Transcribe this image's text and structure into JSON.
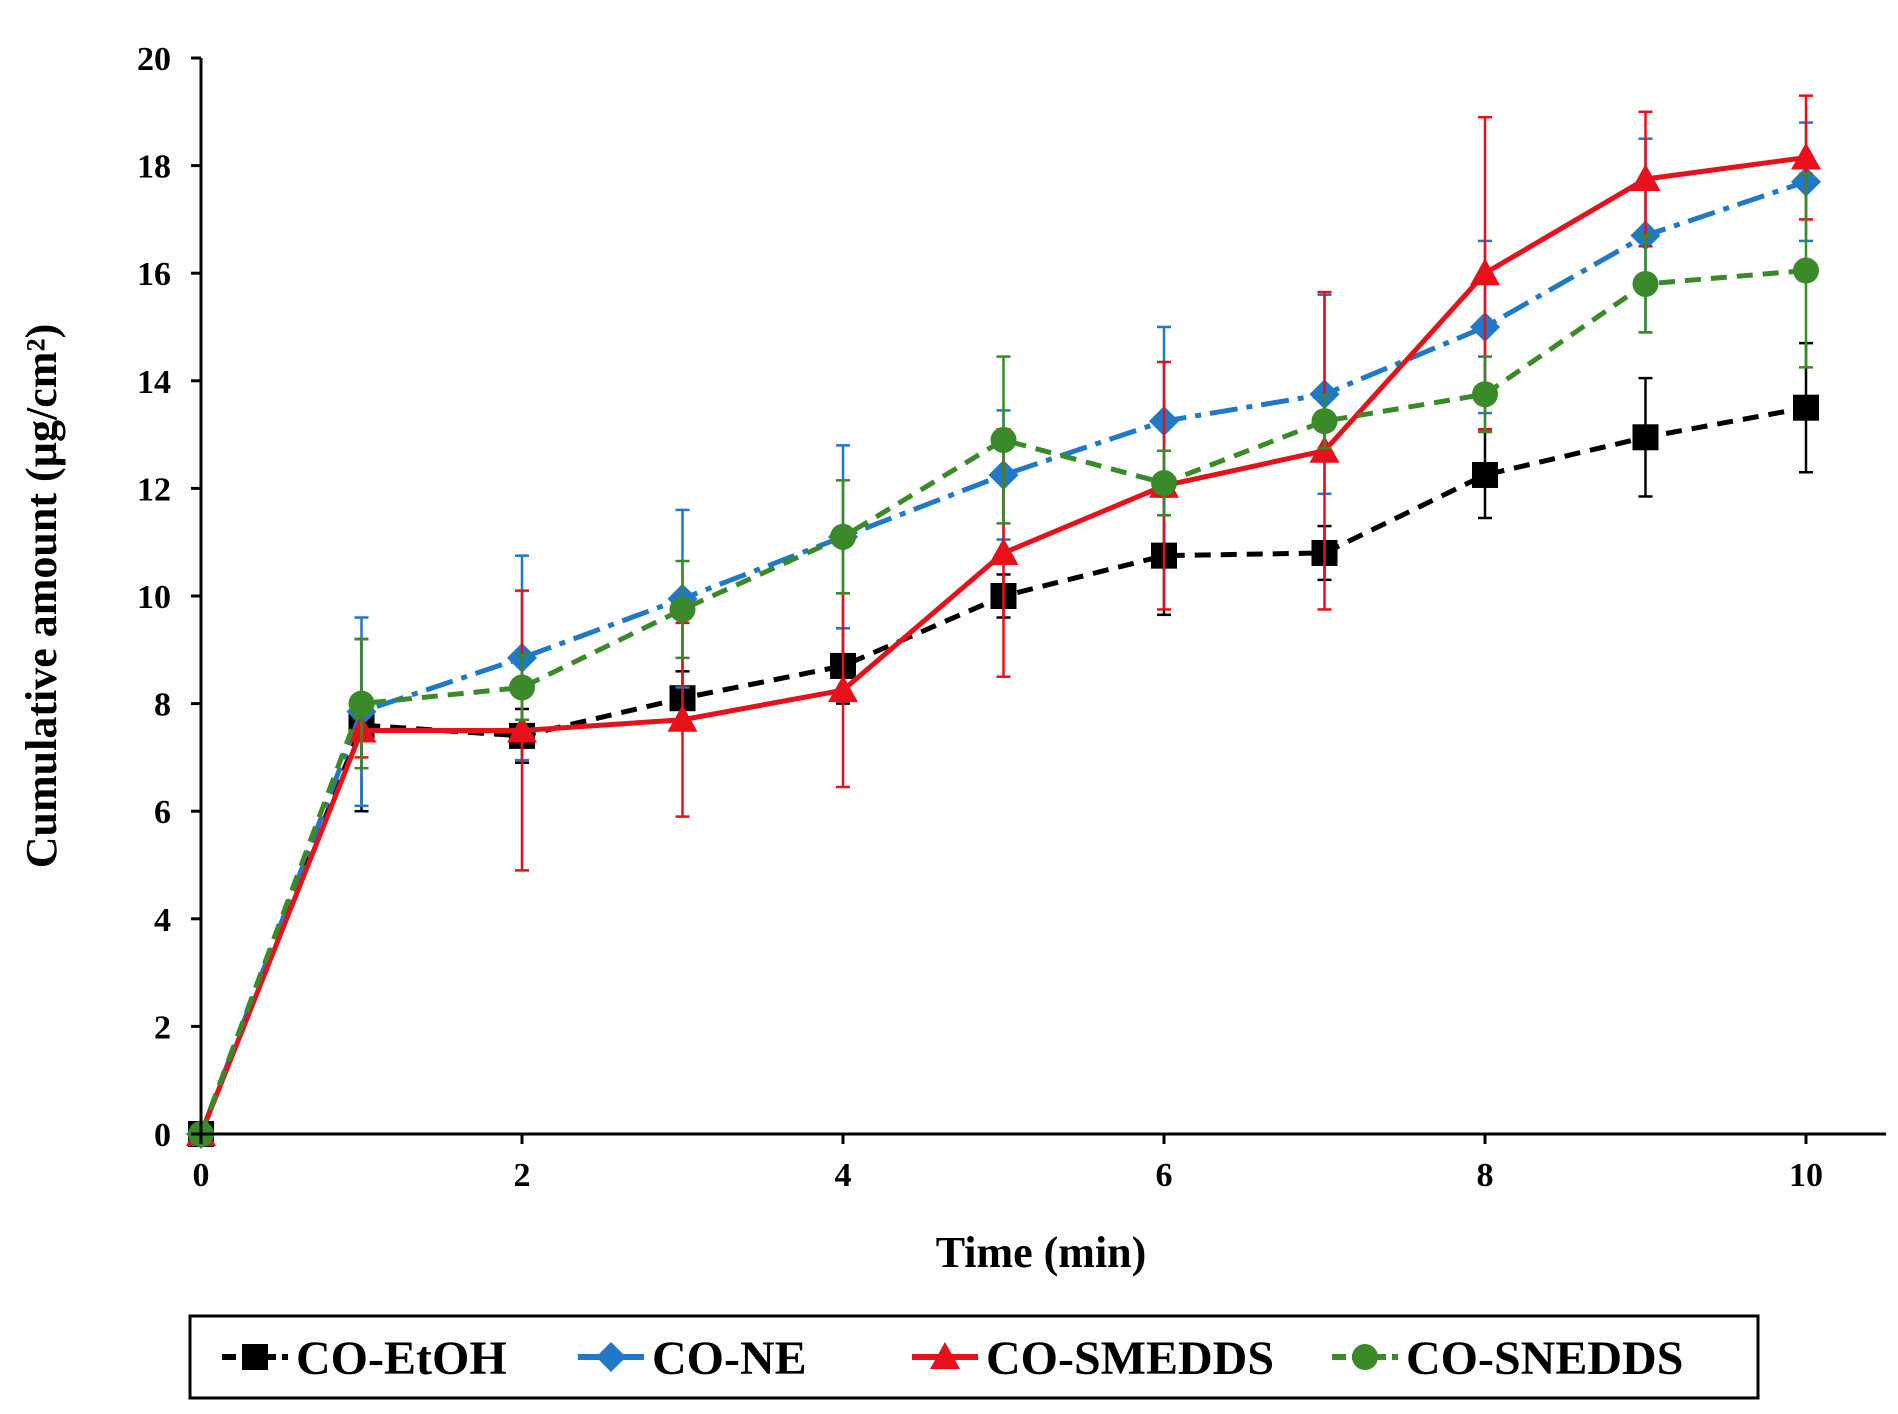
{
  "chart_data": {
    "type": "line",
    "title": "",
    "xlabel": "Time (min)",
    "ylabel": "Cumulative amount (µg/cm²)",
    "xlim": [
      0,
      10.5
    ],
    "ylim": [
      0,
      20
    ],
    "x_ticks": [
      "0",
      "2",
      "4",
      "6",
      "8",
      "10"
    ],
    "y_ticks": [
      "0",
      "2",
      "4",
      "6",
      "8",
      "10",
      "12",
      "14",
      "16",
      "18",
      "20"
    ],
    "grid": false,
    "legend_position": "bottom",
    "x": [
      0,
      1,
      2,
      3,
      4,
      5,
      6,
      7,
      8,
      9,
      10
    ],
    "series": [
      {
        "name": "CO-EtOH",
        "color": "#000000",
        "marker": "square",
        "line_style": "dashed",
        "values": [
          0,
          7.6,
          7.4,
          8.1,
          8.7,
          10.0,
          10.75,
          10.8,
          12.25,
          12.95,
          13.5
        ],
        "errors": [
          0,
          1.6,
          0.5,
          0.5,
          0.7,
          0.4,
          1.1,
          0.5,
          0.8,
          1.1,
          1.2
        ]
      },
      {
        "name": "CO-NE",
        "color": "#1f78c8",
        "marker": "diamond",
        "line_style": "dashdot",
        "values": [
          0,
          7.85,
          8.85,
          9.95,
          11.1,
          12.25,
          13.25,
          13.75,
          15.0,
          16.7,
          17.7
        ],
        "errors": [
          0,
          1.75,
          1.9,
          1.65,
          1.7,
          1.2,
          1.75,
          1.85,
          1.6,
          1.8,
          1.1
        ]
      },
      {
        "name": "CO-SMEDDS",
        "color": "#e8101a",
        "marker": "triangle",
        "line_style": "solid",
        "values": [
          0,
          7.5,
          7.5,
          7.7,
          8.25,
          10.8,
          12.05,
          12.7,
          16.0,
          17.75,
          18.15
        ],
        "errors": [
          0,
          0.5,
          2.6,
          1.8,
          1.8,
          2.3,
          2.3,
          2.95,
          2.9,
          1.25,
          1.15
        ]
      },
      {
        "name": "CO-SNEDDS",
        "color": "#3a8a2a",
        "marker": "circle",
        "line_style": "dashed",
        "values": [
          0,
          8.0,
          8.3,
          9.75,
          11.1,
          12.9,
          12.1,
          13.25,
          13.75,
          15.8,
          16.05
        ],
        "errors": [
          0,
          1.2,
          0.6,
          0.9,
          1.05,
          1.55,
          0.6,
          0.5,
          0.7,
          0.9,
          1.8
        ]
      }
    ]
  }
}
